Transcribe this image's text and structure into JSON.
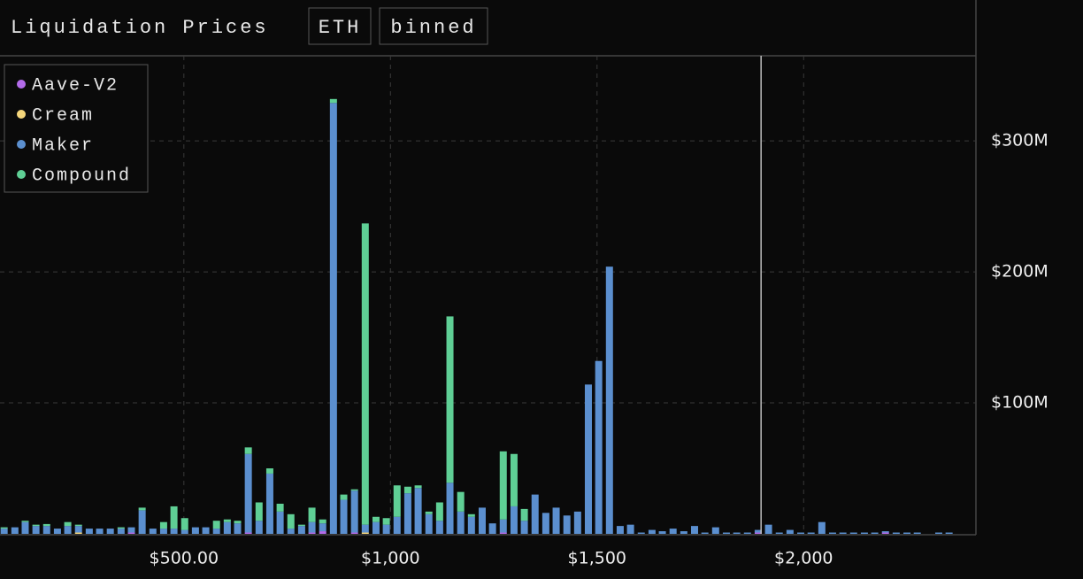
{
  "header": {
    "title": "Liquidation Prices",
    "buttons": [
      "ETH",
      "binned"
    ]
  },
  "chart_data": {
    "type": "bar",
    "stacked": true,
    "x": [
      65,
      91,
      116,
      142,
      168,
      194,
      219,
      245,
      271,
      296,
      322,
      348,
      373,
      399,
      425,
      451,
      476,
      502,
      528,
      553,
      579,
      605,
      630,
      656,
      682,
      708,
      733,
      759,
      785,
      810,
      836,
      862,
      887,
      913,
      939,
      965,
      990,
      1016,
      1042,
      1067,
      1093,
      1119,
      1144,
      1170,
      1196,
      1222,
      1247,
      1273,
      1299,
      1324,
      1350,
      1376,
      1401,
      1427,
      1453,
      1479,
      1504,
      1530,
      1556,
      1581,
      1607,
      1633,
      1658,
      1684,
      1710,
      1736,
      1761,
      1787,
      1813,
      1838,
      1864,
      1890,
      1915,
      1941,
      1967,
      1993,
      2018,
      2044,
      2070,
      2095,
      2121,
      2147,
      2172,
      2198,
      2224,
      2250,
      2275,
      2301,
      2327,
      2352
    ],
    "series": [
      {
        "name": "Aave-V2",
        "color": "#b36bea",
        "values": [
          0,
          0,
          0,
          0,
          0,
          0,
          0,
          0,
          0,
          0,
          0,
          0,
          1,
          0,
          0,
          0,
          0,
          0,
          0,
          0,
          0,
          0,
          0,
          1,
          0,
          0,
          0,
          0,
          0,
          1,
          2,
          0,
          0,
          1,
          0,
          0,
          0,
          0,
          0,
          0,
          0,
          0,
          0,
          0,
          0,
          0,
          0,
          1,
          0,
          0,
          0,
          0,
          0,
          0,
          0,
          0,
          0,
          0,
          0,
          0,
          0,
          0,
          0,
          0,
          0,
          0,
          0,
          0,
          0,
          0,
          0,
          1,
          0,
          0,
          0,
          0,
          0,
          0,
          0,
          0,
          0,
          0,
          0,
          1,
          0,
          0,
          0,
          0,
          0,
          0
        ]
      },
      {
        "name": "Cream",
        "color": "#f5d67b",
        "values": [
          0,
          0,
          0,
          0,
          0,
          0,
          0,
          1,
          0,
          0,
          0,
          0,
          0,
          0,
          0,
          0,
          0,
          0,
          0,
          0,
          0,
          0,
          0,
          0,
          0,
          0,
          0,
          0,
          0,
          0,
          0,
          0,
          0,
          0,
          1,
          0,
          0,
          0,
          0,
          0,
          0,
          0,
          0,
          0,
          0,
          0,
          0,
          0,
          0,
          0,
          0,
          0,
          0,
          0,
          0,
          0,
          0,
          0,
          0,
          0,
          0,
          0,
          0,
          0,
          0,
          0,
          0,
          0,
          0,
          0,
          0,
          0,
          0,
          0,
          0,
          0,
          0,
          0,
          0,
          0,
          0,
          0,
          0,
          0,
          0,
          0,
          0,
          0,
          0,
          0
        ]
      },
      {
        "name": "Maker",
        "color": "#5b8fcf",
        "values": [
          4,
          5,
          9,
          6,
          6,
          4,
          6,
          5,
          4,
          4,
          4,
          4,
          4,
          18,
          4,
          4,
          4,
          3,
          5,
          5,
          4,
          9,
          8,
          60,
          10,
          46,
          17,
          4,
          6,
          8,
          6,
          329,
          26,
          32,
          6,
          9,
          7,
          13,
          31,
          35,
          15,
          10,
          39,
          17,
          13,
          20,
          8,
          10,
          21,
          10,
          30,
          16,
          20,
          14,
          17,
          114,
          132,
          204,
          6,
          7,
          1,
          3,
          2,
          4,
          2,
          6,
          1,
          5,
          1,
          1,
          1,
          2,
          7,
          1,
          3,
          1,
          1,
          9,
          1,
          1,
          1,
          1,
          1,
          1,
          1,
          1,
          1,
          0,
          1,
          1
        ]
      },
      {
        "name": "Compound",
        "color": "#5fcf95",
        "values": [
          1,
          0,
          1,
          1,
          1.5,
          0,
          3,
          1,
          0,
          0,
          0,
          1,
          0,
          2,
          0,
          5,
          17,
          9,
          0,
          0,
          6,
          2,
          2,
          5,
          14,
          4,
          6,
          11,
          1,
          11,
          3,
          3,
          4,
          1,
          230,
          4,
          5,
          24,
          5,
          2,
          2,
          14,
          127,
          15,
          2,
          0,
          0,
          52,
          40,
          9,
          0,
          0,
          0,
          0,
          0,
          0,
          0,
          0,
          0,
          0,
          0,
          0,
          0,
          0,
          0,
          0,
          0,
          0,
          0,
          0,
          0,
          0,
          0,
          0,
          0,
          0,
          0,
          0,
          0,
          0,
          0,
          0,
          0,
          0,
          0,
          0,
          0,
          0,
          0,
          0
        ]
      }
    ],
    "xlim": [
      55,
      2417
    ],
    "xticks": [
      {
        "value": 500,
        "label": "$500.00"
      },
      {
        "value": 1000,
        "label": "$1,000"
      },
      {
        "value": 1500,
        "label": "$1,500"
      },
      {
        "value": 2000,
        "label": "$2,000"
      }
    ],
    "ylim": [
      0,
      365
    ],
    "yticks": [
      {
        "value": 100,
        "label": "$100M"
      },
      {
        "value": 200,
        "label": "$200M"
      },
      {
        "value": 300,
        "label": "$300M"
      }
    ],
    "current_price": 1897,
    "grid": true,
    "legend": "upper left"
  }
}
